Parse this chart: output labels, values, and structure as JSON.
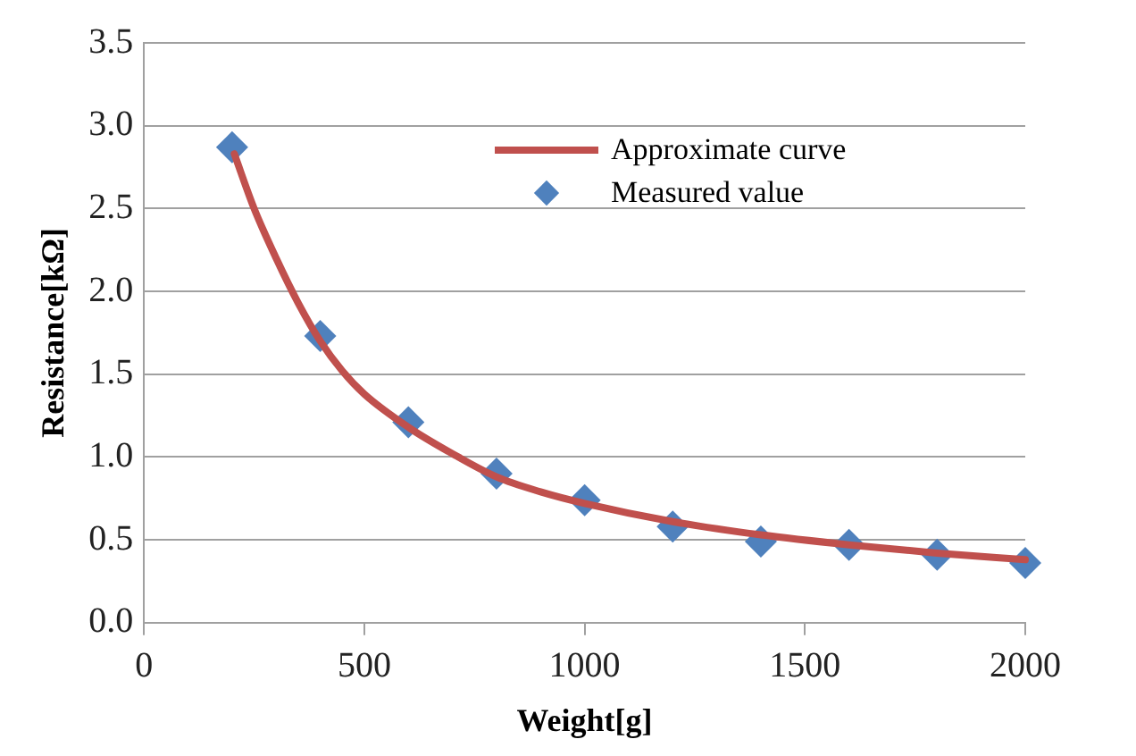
{
  "chart_data": {
    "type": "scatter",
    "xlabel": "Weight[g]",
    "ylabel": "Resistance[kΩ]",
    "xlim": [
      0,
      2000
    ],
    "xticks": [
      0,
      500,
      1000,
      1500,
      2000
    ],
    "ylim": [
      0,
      3.5
    ],
    "yticks": [
      {
        "value": 0,
        "label": "0.0"
      },
      {
        "value": 0.5,
        "label": "0.5"
      },
      {
        "value": 1,
        "label": "1.0"
      },
      {
        "value": 1.5,
        "label": "1.5"
      },
      {
        "value": 2,
        "label": "2.0"
      },
      {
        "value": 2.5,
        "label": "2.5"
      },
      {
        "value": 3,
        "label": "3.0"
      },
      {
        "value": 3.5,
        "label": "3.5"
      }
    ],
    "grid": "y",
    "legend": "top right",
    "series": [
      {
        "name": "Approximate curve",
        "type": "line",
        "marker": "none",
        "line_style": "solid",
        "color": "#c0504d",
        "x": [
          205,
          250,
          300,
          350,
          400,
          450,
          500,
          600,
          700,
          800,
          900,
          1000,
          1200,
          1400,
          1600,
          1800,
          2000
        ],
        "values": [
          2.83,
          2.5,
          2.2,
          1.93,
          1.7,
          1.52,
          1.38,
          1.18,
          1.02,
          0.88,
          0.79,
          0.72,
          0.61,
          0.53,
          0.47,
          0.42,
          0.38
        ]
      },
      {
        "name": "Measured value",
        "marker": "diamond",
        "color": "#4f81bd",
        "x": [
          200,
          400,
          600,
          800,
          1000,
          1200,
          1400,
          1600,
          1800,
          2000
        ],
        "values": [
          2.87,
          1.73,
          1.21,
          0.9,
          0.74,
          0.58,
          0.49,
          0.47,
          0.41,
          0.36
        ]
      }
    ]
  }
}
